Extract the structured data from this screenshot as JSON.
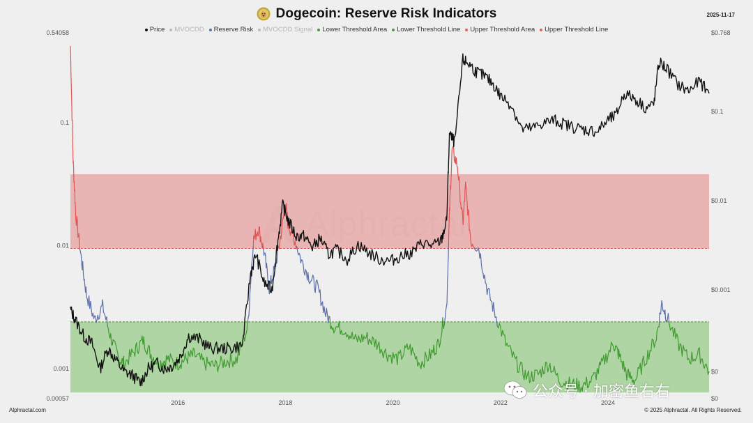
{
  "header": {
    "title": "Dogecoin: Reserve Risk Indicators",
    "date": "2025-11-17",
    "coin_icon": "dogecoin-logo-icon"
  },
  "legend": [
    {
      "label": "Price",
      "color": "#111111",
      "muted": false
    },
    {
      "label": "MVOCDD",
      "color": "#bdbdbd",
      "muted": true
    },
    {
      "label": "Reserve Risk",
      "color": "#5b6fa8",
      "muted": false
    },
    {
      "label": "MVOCDD Signal",
      "color": "#bdbdbd",
      "muted": true
    },
    {
      "label": "Lower Threshold Area",
      "color": "#4a9a3a",
      "muted": false
    },
    {
      "label": "Lower Threshold Line",
      "color": "#4a9a3a",
      "muted": false
    },
    {
      "label": "Upper Threshold Area",
      "color": "#e06060",
      "muted": false
    },
    {
      "label": "Upper Threshold Line",
      "color": "#e06060",
      "muted": false
    }
  ],
  "footer": {
    "left": "Alphractal.com",
    "right": "© 2025 Alphractal. All Rights Reserved."
  },
  "watermark": {
    "text": "Alphractal"
  },
  "overlay": {
    "wechat_text": "公众号 · 加密鱼右右"
  },
  "chart_data": {
    "type": "line",
    "x_ticks": [
      "2016",
      "2018",
      "2020",
      "2022",
      "2024"
    ],
    "x_tick_years": [
      2016,
      2018,
      2020,
      2022,
      2024
    ],
    "x_range": [
      2014.0,
      2025.88
    ],
    "left_axis": {
      "scale": "log",
      "ticks": [
        "0.54058",
        "0.1",
        "0.01",
        "0.001",
        "0.00057"
      ],
      "tick_values": [
        0.54058,
        0.1,
        0.01,
        0.001,
        0.00057
      ],
      "range": [
        0.00057,
        0.54058
      ]
    },
    "right_axis": {
      "scale": "log",
      "ticks": [
        "$0.768",
        "$0.1",
        "$0.01",
        "$0.001",
        "$0",
        "$0"
      ],
      "tick_values": [
        0.768,
        0.1,
        0.01,
        0.001,
        0.00012,
        6e-05
      ],
      "range": [
        6e-05,
        0.768
      ]
    },
    "upper_threshold": 0.0095,
    "lower_threshold": 0.0024,
    "colors": {
      "price": "#111111",
      "reserve_risk_neutral": "#5b6fa8",
      "reserve_risk_high": "#e05555",
      "reserve_risk_low": "#3f9a2f",
      "upper_area": "#e8a9a9",
      "lower_area": "#a8d29b",
      "upper_line": "#d45a5a",
      "lower_line": "#3f8a35"
    },
    "reserve_risk_series": {
      "x": [
        2014.0,
        2014.05,
        2014.1,
        2014.2,
        2014.3,
        2014.45,
        2014.6,
        2014.75,
        2014.9,
        2015.0,
        2015.2,
        2015.35,
        2015.5,
        2015.65,
        2015.8,
        2016.0,
        2016.15,
        2016.3,
        2016.5,
        2016.7,
        2016.9,
        2017.1,
        2017.3,
        2017.4,
        2017.5,
        2017.6,
        2017.7,
        2017.8,
        2017.9,
        2018.0,
        2018.05,
        2018.15,
        2018.3,
        2018.45,
        2018.6,
        2018.75,
        2018.9,
        2019.1,
        2019.3,
        2019.5,
        2019.7,
        2019.9,
        2020.1,
        2020.3,
        2020.5,
        2020.7,
        2020.85,
        2021.0,
        2021.05,
        2021.1,
        2021.2,
        2021.3,
        2021.35,
        2021.45,
        2021.6,
        2021.75,
        2021.9,
        2022.1,
        2022.3,
        2022.5,
        2022.7,
        2022.9,
        2023.1,
        2023.3,
        2023.5,
        2023.7,
        2023.9,
        2024.1,
        2024.2,
        2024.35,
        2024.5,
        2024.7,
        2024.9,
        2025.0,
        2025.1,
        2025.3,
        2025.5,
        2025.7,
        2025.88
      ],
      "y": [
        0.42,
        0.05,
        0.018,
        0.008,
        0.004,
        0.0025,
        0.0032,
        0.0018,
        0.0012,
        0.0011,
        0.0014,
        0.0017,
        0.0013,
        0.0011,
        0.0012,
        0.0011,
        0.0012,
        0.0013,
        0.0011,
        0.00105,
        0.00115,
        0.0012,
        0.0022,
        0.011,
        0.014,
        0.009,
        0.0045,
        0.0065,
        0.011,
        0.022,
        0.015,
        0.012,
        0.0075,
        0.0055,
        0.0045,
        0.0028,
        0.0022,
        0.0021,
        0.0017,
        0.0018,
        0.0016,
        0.0013,
        0.0012,
        0.0015,
        0.0011,
        0.0013,
        0.0016,
        0.0032,
        0.018,
        0.06,
        0.045,
        0.015,
        0.03,
        0.011,
        0.0095,
        0.0045,
        0.0028,
        0.0016,
        0.0011,
        0.00085,
        0.0009,
        0.0011,
        0.0008,
        0.00075,
        0.00072,
        0.0008,
        0.0011,
        0.0016,
        0.0013,
        0.0009,
        0.0008,
        0.0012,
        0.0018,
        0.0034,
        0.0026,
        0.0016,
        0.0012,
        0.0013,
        0.00095
      ]
    },
    "price_series": {
      "x": [
        2014.0,
        2014.1,
        2014.25,
        2014.4,
        2014.55,
        2014.7,
        2014.85,
        2015.0,
        2015.15,
        2015.3,
        2015.45,
        2015.6,
        2015.75,
        2015.9,
        2016.05,
        2016.2,
        2016.4,
        2016.6,
        2016.8,
        2017.0,
        2017.2,
        2017.35,
        2017.45,
        2017.6,
        2017.75,
        2017.85,
        2017.95,
        2018.05,
        2018.2,
        2018.35,
        2018.5,
        2018.65,
        2018.8,
        2018.95,
        2019.15,
        2019.35,
        2019.55,
        2019.75,
        2019.95,
        2020.15,
        2020.35,
        2020.55,
        2020.75,
        2020.9,
        2021.0,
        2021.05,
        2021.15,
        2021.3,
        2021.4,
        2021.55,
        2021.7,
        2021.85,
        2022.0,
        2022.2,
        2022.4,
        2022.6,
        2022.8,
        2023.0,
        2023.2,
        2023.4,
        2023.6,
        2023.8,
        2024.0,
        2024.15,
        2024.3,
        2024.5,
        2024.7,
        2024.85,
        2024.95,
        2025.1,
        2025.3,
        2025.5,
        2025.7,
        2025.88
      ],
      "y": [
        0.0006,
        0.00045,
        0.0003,
        0.00025,
        0.00013,
        0.00022,
        0.00016,
        0.00012,
        0.00011,
        9e-05,
        0.00013,
        0.00015,
        0.00013,
        0.00014,
        0.00018,
        0.0003,
        0.00028,
        0.00022,
        0.00022,
        0.00022,
        0.00024,
        0.0015,
        0.0025,
        0.0012,
        0.001,
        0.0032,
        0.009,
        0.006,
        0.004,
        0.004,
        0.003,
        0.0038,
        0.0025,
        0.0028,
        0.0022,
        0.0032,
        0.0026,
        0.0022,
        0.0021,
        0.0024,
        0.0026,
        0.0034,
        0.0031,
        0.0036,
        0.006,
        0.055,
        0.045,
        0.38,
        0.35,
        0.28,
        0.25,
        0.21,
        0.15,
        0.12,
        0.063,
        0.065,
        0.075,
        0.08,
        0.072,
        0.066,
        0.062,
        0.06,
        0.08,
        0.09,
        0.16,
        0.14,
        0.11,
        0.12,
        0.36,
        0.3,
        0.2,
        0.17,
        0.22,
        0.16
      ]
    }
  }
}
